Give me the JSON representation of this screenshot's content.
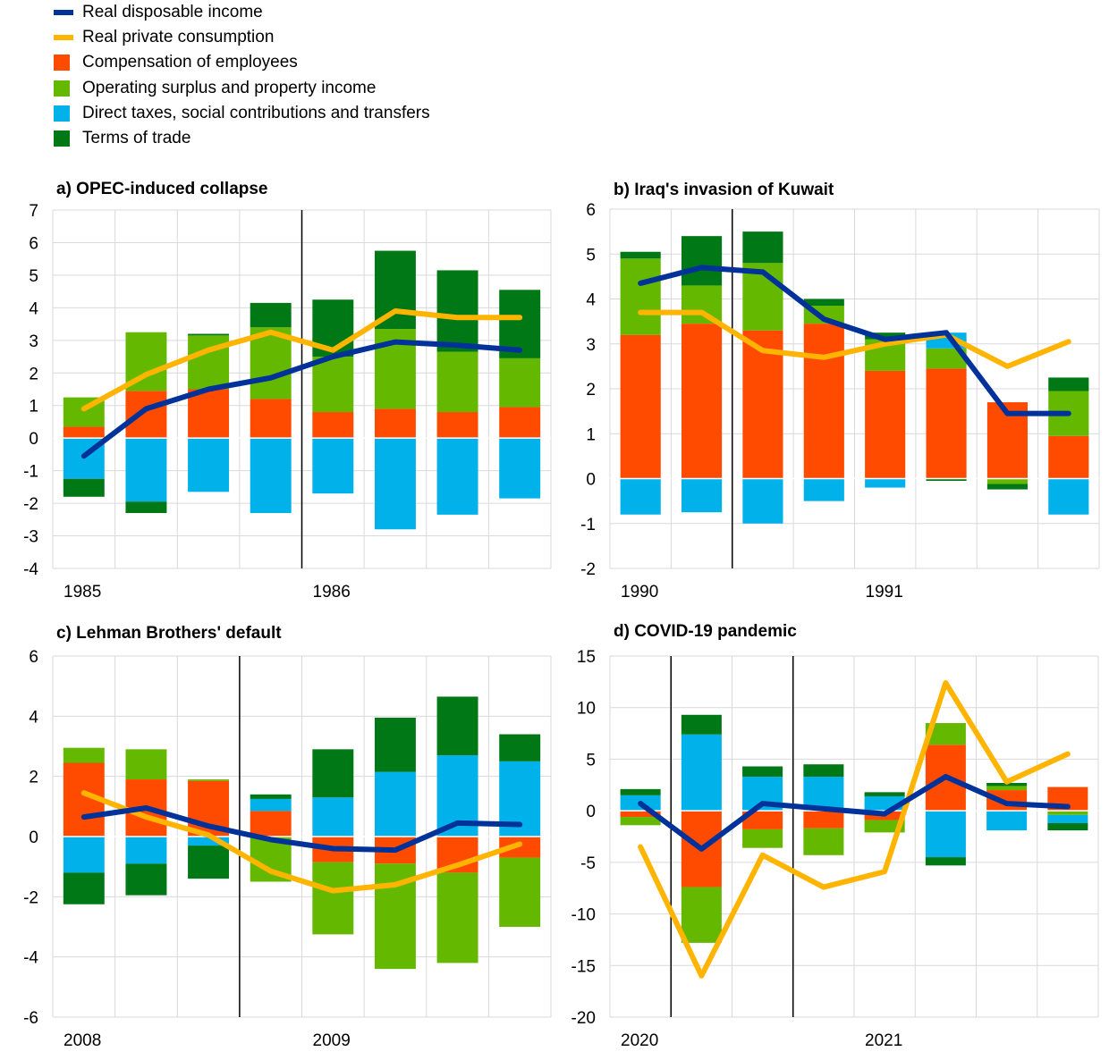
{
  "colors": {
    "disposable": "#003299",
    "consumption": "#FFB400",
    "compensation": "#FF4B00",
    "surplus": "#65B800",
    "taxes": "#00B1EA",
    "terms": "#007816"
  },
  "legend": [
    {
      "key": "disposable",
      "label": "Real disposable income",
      "kind": "line"
    },
    {
      "key": "consumption",
      "label": "Real private consumption",
      "kind": "line"
    },
    {
      "key": "compensation",
      "label": "Compensation of employees",
      "kind": "box"
    },
    {
      "key": "surplus",
      "label": "Operating surplus and property income",
      "kind": "box"
    },
    {
      "key": "taxes",
      "label": "Direct taxes, social contributions and transfers",
      "kind": "box"
    },
    {
      "key": "terms",
      "label": "Terms of trade",
      "kind": "box"
    }
  ],
  "chart_data": [
    {
      "type": "bar",
      "title": "a) OPEC-induced collapse",
      "ylim": [
        -4,
        7
      ],
      "yticks": [
        -4,
        -3,
        -2,
        -1,
        0,
        1,
        2,
        3,
        4,
        5,
        6,
        7
      ],
      "xlabels": [
        {
          "label": "1985",
          "index": 0
        },
        {
          "label": "1986",
          "index": 4
        }
      ],
      "vlines": [
        3.5
      ],
      "n": 8,
      "series": [
        {
          "key": "compensation",
          "values": [
            0.35,
            1.45,
            1.5,
            1.2,
            0.8,
            0.9,
            0.8,
            0.95
          ]
        },
        {
          "key": "surplus",
          "values": [
            0.9,
            1.8,
            1.65,
            2.2,
            1.7,
            2.45,
            1.85,
            1.5
          ]
        },
        {
          "key": "taxes",
          "values": [
            -1.25,
            -1.95,
            -1.65,
            -2.3,
            -1.7,
            -2.8,
            -2.35,
            -1.85
          ]
        },
        {
          "key": "terms",
          "values": [
            -0.55,
            -0.35,
            0.05,
            0.75,
            1.75,
            2.4,
            2.5,
            2.1
          ]
        }
      ],
      "lines": [
        {
          "key": "disposable",
          "values": [
            -0.55,
            0.9,
            1.5,
            1.85,
            2.5,
            2.95,
            2.85,
            2.7
          ]
        },
        {
          "key": "consumption",
          "values": [
            0.9,
            1.95,
            2.7,
            3.25,
            2.7,
            3.9,
            3.7,
            3.7
          ]
        }
      ]
    },
    {
      "type": "bar",
      "title": "b) Iraq's invasion of Kuwait",
      "ylim": [
        -2,
        6
      ],
      "yticks": [
        -2,
        -1,
        0,
        1,
        2,
        3,
        4,
        5,
        6
      ],
      "xlabels": [
        {
          "label": "1990",
          "index": 0
        },
        {
          "label": "1991",
          "index": 4
        }
      ],
      "vlines": [
        1.5
      ],
      "n": 8,
      "series": [
        {
          "key": "compensation",
          "values": [
            3.2,
            3.45,
            3.3,
            3.45,
            2.4,
            2.45,
            1.7,
            0.95
          ]
        },
        {
          "key": "surplus",
          "values": [
            1.7,
            0.85,
            1.5,
            0.4,
            0.7,
            0.45,
            -0.12,
            1.0
          ]
        },
        {
          "key": "taxes",
          "values": [
            -0.8,
            -0.75,
            -1.0,
            -0.5,
            -0.2,
            0.35,
            0,
            -0.8
          ]
        },
        {
          "key": "terms",
          "values": [
            0.15,
            1.1,
            0.7,
            0.15,
            0.15,
            -0.05,
            -0.12,
            0.3
          ]
        }
      ],
      "lines": [
        {
          "key": "disposable",
          "values": [
            4.35,
            4.7,
            4.6,
            3.55,
            3.1,
            3.25,
            1.45,
            1.45
          ]
        },
        {
          "key": "consumption",
          "values": [
            3.7,
            3.7,
            2.85,
            2.7,
            3.0,
            3.2,
            2.5,
            3.05
          ]
        }
      ]
    },
    {
      "type": "bar",
      "title": "c) Lehman Brothers' default",
      "ylim": [
        -6,
        6
      ],
      "yticks": [
        -6,
        -4,
        -2,
        0,
        2,
        4,
        6
      ],
      "xlabels": [
        {
          "label": "2008",
          "index": 0
        },
        {
          "label": "2009",
          "index": 4
        }
      ],
      "vlines": [
        2.5
      ],
      "n": 8,
      "series": [
        {
          "key": "compensation",
          "values": [
            2.45,
            1.9,
            1.85,
            0.85,
            -0.85,
            -0.9,
            -1.2,
            -0.7
          ]
        },
        {
          "key": "surplus",
          "values": [
            0.5,
            1.0,
            0.05,
            -1.5,
            -2.4,
            -3.5,
            -3.0,
            -2.3
          ]
        },
        {
          "key": "taxes",
          "values": [
            -1.2,
            -0.9,
            -0.3,
            0.4,
            1.3,
            2.15,
            2.7,
            2.5
          ]
        },
        {
          "key": "terms",
          "values": [
            -1.05,
            -1.05,
            -1.1,
            0.15,
            1.6,
            1.8,
            1.95,
            0.9
          ]
        }
      ],
      "lines": [
        {
          "key": "disposable",
          "values": [
            0.65,
            0.95,
            0.35,
            -0.1,
            -0.4,
            -0.45,
            0.45,
            0.4
          ]
        },
        {
          "key": "consumption",
          "values": [
            1.45,
            0.65,
            0.05,
            -1.15,
            -1.8,
            -1.6,
            -0.95,
            -0.25
          ]
        }
      ]
    },
    {
      "type": "bar",
      "title": "d) COVID-19 pandemic",
      "ylim": [
        -20,
        15
      ],
      "yticks": [
        -20,
        -15,
        -10,
        -5,
        0,
        5,
        10,
        15
      ],
      "xlabels": [
        {
          "label": "2020",
          "index": 0
        },
        {
          "label": "2021",
          "index": 4
        }
      ],
      "vlines": [
        0.5,
        2.5
      ],
      "n": 8,
      "series": [
        {
          "key": "compensation",
          "values": [
            -0.6,
            -7.4,
            -1.8,
            -1.7,
            -0.9,
            6.4,
            2.0,
            2.3
          ]
        },
        {
          "key": "surplus",
          "values": [
            -0.8,
            -5.4,
            -1.8,
            -2.6,
            -1.2,
            2.1,
            0.4,
            -0.4
          ]
        },
        {
          "key": "taxes",
          "values": [
            1.5,
            7.4,
            3.3,
            3.3,
            1.4,
            -4.5,
            -1.9,
            -0.8
          ]
        },
        {
          "key": "terms",
          "values": [
            0.6,
            1.9,
            1.0,
            1.2,
            0.4,
            -0.8,
            0.3,
            -0.7
          ]
        }
      ],
      "lines": [
        {
          "key": "disposable",
          "values": [
            0.7,
            -3.7,
            0.7,
            0.2,
            -0.3,
            3.3,
            0.7,
            0.4
          ]
        },
        {
          "key": "consumption",
          "values": [
            -3.5,
            -16.0,
            -4.3,
            -7.4,
            -5.9,
            12.4,
            2.8,
            5.5
          ]
        }
      ]
    }
  ]
}
